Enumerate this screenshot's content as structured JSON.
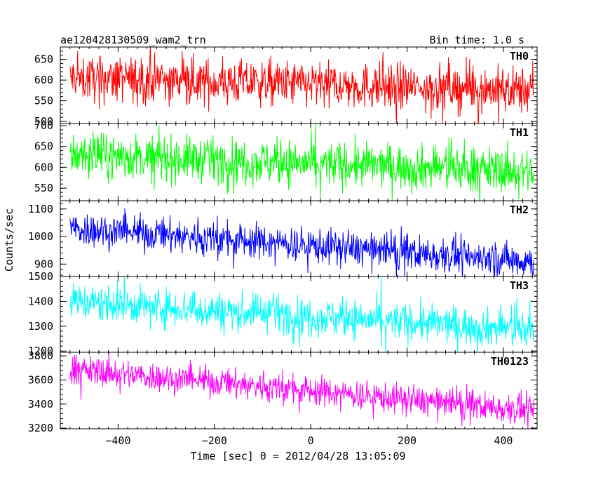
{
  "header": {
    "title": "ae120428130509_wam2_trn",
    "bin_time": "Bin time: 1.0 s"
  },
  "chart_data": {
    "type": "line",
    "title": "ae120428130509_wam2_trn",
    "xlabel": "Time [sec] 0 = 2012/04/28 13:05:09",
    "ylabel": "Counts/sec",
    "xlim": [
      -520,
      470
    ],
    "xticks": [
      -400,
      -200,
      0,
      200,
      400
    ],
    "x_start": -500,
    "x_end": 463,
    "bin_seconds": 1.0,
    "panels": [
      {
        "name": "TH0",
        "color": "#ff0000",
        "ylim": [
          495,
          680
        ],
        "yticks": [
          500,
          550,
          600,
          650
        ],
        "trend_start": 605,
        "trend_end": 575,
        "noise": 28,
        "spike": 55
      },
      {
        "name": "TH1",
        "color": "#00ff00",
        "ylim": [
          520,
          705
        ],
        "yticks": [
          550,
          600,
          650,
          700
        ],
        "trend_start": 630,
        "trend_end": 590,
        "noise": 27,
        "spike": 50
      },
      {
        "name": "TH2",
        "color": "#0000ff",
        "ylim": [
          855,
          1130
        ],
        "yticks": [
          900,
          1000,
          1100
        ],
        "trend_start": 1030,
        "trend_end": 910,
        "noise": 32,
        "spike": 70
      },
      {
        "name": "TH3",
        "color": "#00ffff",
        "ylim": [
          1195,
          1500
        ],
        "yticks": [
          1200,
          1300,
          1400,
          1500
        ],
        "trend_start": 1400,
        "trend_end": 1285,
        "noise": 38,
        "spike": 90
      },
      {
        "name": "TH0123",
        "color": "#ff00ff",
        "ylim": [
          3195,
          3830
        ],
        "yticks": [
          3200,
          3400,
          3600,
          3800
        ],
        "trend_start": 3690,
        "trend_end": 3345,
        "noise": 62,
        "spike": 130
      }
    ]
  }
}
